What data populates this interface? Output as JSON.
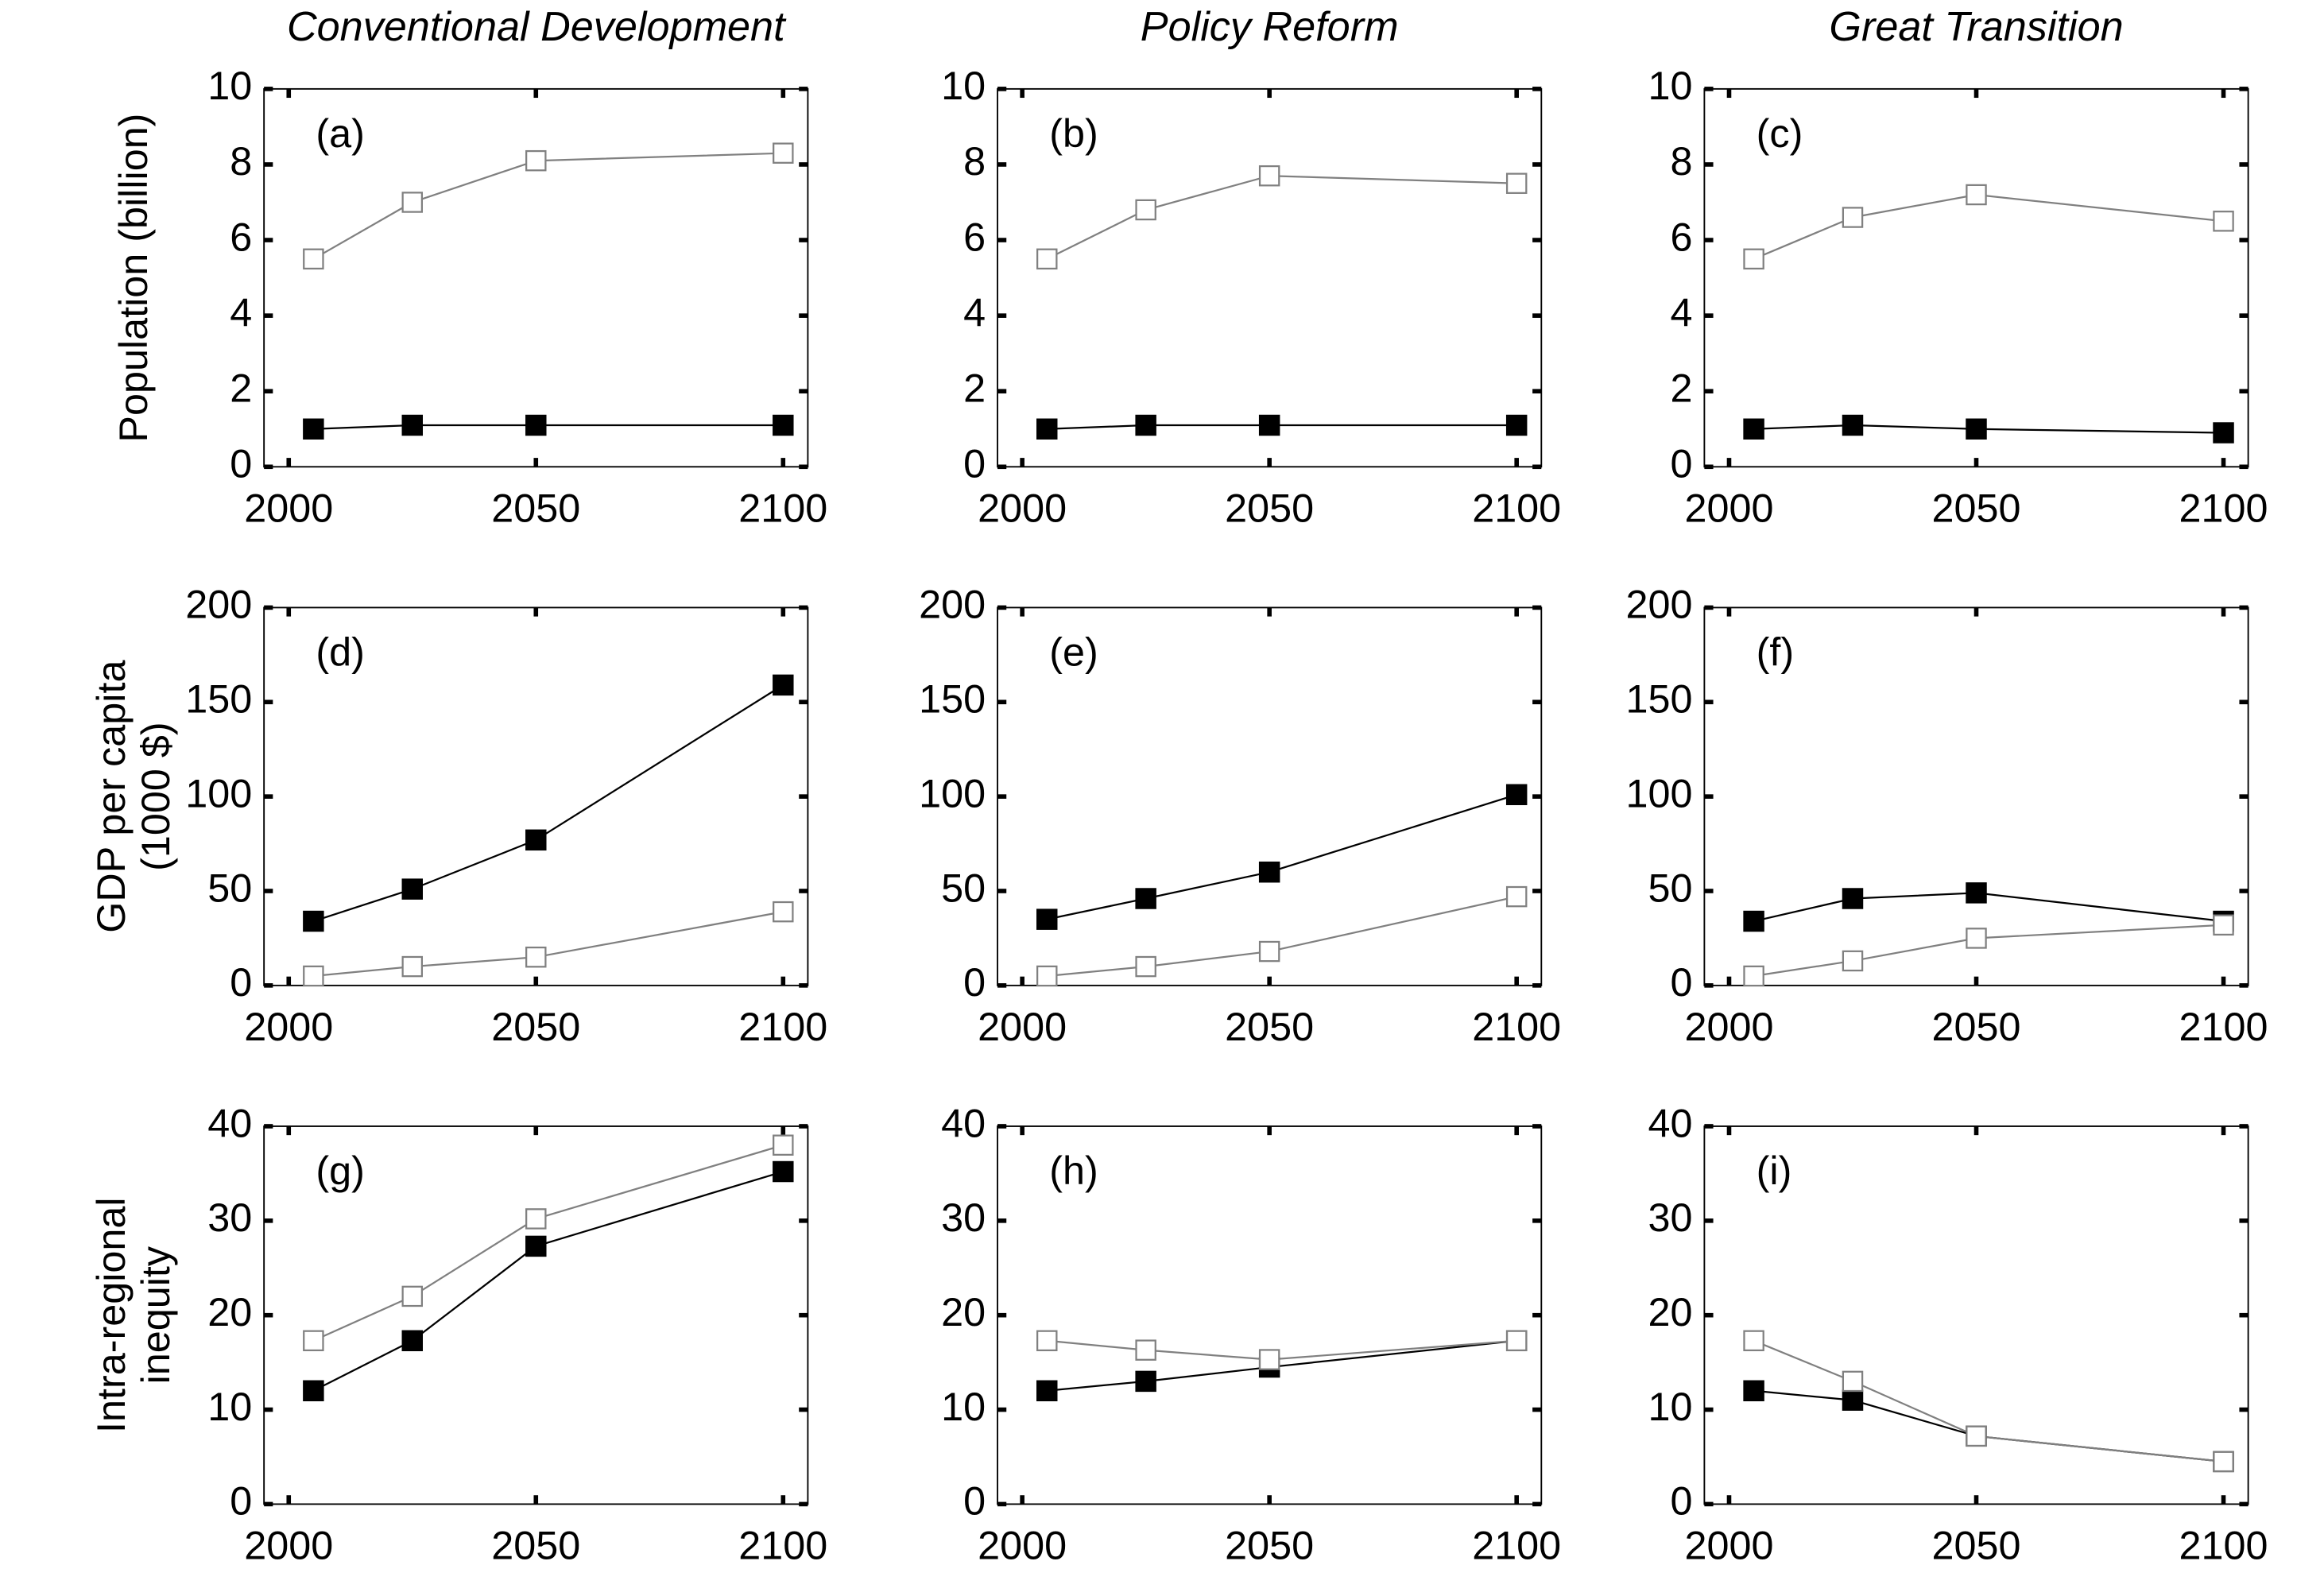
{
  "chart_data": [
    {
      "type": "line",
      "title": "Conventional Development",
      "ylabel": [
        "Population (billion)"
      ],
      "panel_label": "(a)",
      "x": [
        2005,
        2025,
        2050,
        2100
      ],
      "xlim": [
        1995,
        2105
      ],
      "xticks": [
        2000,
        2050,
        2100
      ],
      "ylim": [
        0,
        10
      ],
      "yticks": [
        0,
        2,
        4,
        6,
        8,
        10
      ],
      "series": [
        {
          "color": "#808080",
          "marker_fill": "#ffffff",
          "values": [
            5.5,
            7.0,
            8.1,
            8.3
          ]
        },
        {
          "color": "#000000",
          "marker_fill": "#000000",
          "values": [
            1.0,
            1.1,
            1.1,
            1.1
          ]
        }
      ]
    },
    {
      "type": "line",
      "title": "Policy Reform",
      "panel_label": "(b)",
      "x": [
        2005,
        2025,
        2050,
        2100
      ],
      "xlim": [
        1995,
        2105
      ],
      "xticks": [
        2000,
        2050,
        2100
      ],
      "ylim": [
        0,
        10
      ],
      "yticks": [
        0,
        2,
        4,
        6,
        8,
        10
      ],
      "series": [
        {
          "color": "#808080",
          "marker_fill": "#ffffff",
          "values": [
            5.5,
            6.8,
            7.7,
            7.5
          ]
        },
        {
          "color": "#000000",
          "marker_fill": "#000000",
          "values": [
            1.0,
            1.1,
            1.1,
            1.1
          ]
        }
      ]
    },
    {
      "type": "line",
      "title": "Great Transition",
      "panel_label": "(c)",
      "x": [
        2005,
        2025,
        2050,
        2100
      ],
      "xlim": [
        1995,
        2105
      ],
      "xticks": [
        2000,
        2050,
        2100
      ],
      "ylim": [
        0,
        10
      ],
      "yticks": [
        0,
        2,
        4,
        6,
        8,
        10
      ],
      "series": [
        {
          "color": "#808080",
          "marker_fill": "#ffffff",
          "values": [
            5.5,
            6.6,
            7.2,
            6.5
          ]
        },
        {
          "color": "#000000",
          "marker_fill": "#000000",
          "values": [
            1.0,
            1.1,
            1.0,
            0.9
          ]
        }
      ]
    },
    {
      "type": "line",
      "ylabel": [
        "GDP per capita",
        "(1000 $)"
      ],
      "panel_label": "(d)",
      "x": [
        2005,
        2025,
        2050,
        2100
      ],
      "xlim": [
        1995,
        2105
      ],
      "xticks": [
        2000,
        2050,
        2100
      ],
      "ylim": [
        0,
        200
      ],
      "yticks": [
        0,
        50,
        100,
        150,
        200
      ],
      "series": [
        {
          "color": "#000000",
          "marker_fill": "#000000",
          "values": [
            34,
            51,
            77,
            159
          ]
        },
        {
          "color": "#808080",
          "marker_fill": "#ffffff",
          "values": [
            5,
            10,
            15,
            39
          ]
        }
      ]
    },
    {
      "type": "line",
      "panel_label": "(e)",
      "x": [
        2005,
        2025,
        2050,
        2100
      ],
      "xlim": [
        1995,
        2105
      ],
      "xticks": [
        2000,
        2050,
        2100
      ],
      "ylim": [
        0,
        200
      ],
      "yticks": [
        0,
        50,
        100,
        150,
        200
      ],
      "series": [
        {
          "color": "#000000",
          "marker_fill": "#000000",
          "values": [
            35,
            46,
            60,
            101
          ]
        },
        {
          "color": "#808080",
          "marker_fill": "#ffffff",
          "values": [
            5,
            10,
            18,
            47
          ]
        }
      ]
    },
    {
      "type": "line",
      "panel_label": "(f)",
      "x": [
        2005,
        2025,
        2050,
        2100
      ],
      "xlim": [
        1995,
        2105
      ],
      "xticks": [
        2000,
        2050,
        2100
      ],
      "ylim": [
        0,
        200
      ],
      "yticks": [
        0,
        50,
        100,
        150,
        200
      ],
      "series": [
        {
          "color": "#000000",
          "marker_fill": "#000000",
          "values": [
            34,
            46,
            49,
            34
          ]
        },
        {
          "color": "#808080",
          "marker_fill": "#ffffff",
          "values": [
            5,
            13,
            25,
            32
          ]
        }
      ]
    },
    {
      "type": "line",
      "ylabel": [
        "Intra-regional",
        "inequity"
      ],
      "panel_label": "(g)",
      "x": [
        2005,
        2025,
        2050,
        2100
      ],
      "xlim": [
        1995,
        2105
      ],
      "xticks": [
        2000,
        2050,
        2100
      ],
      "ylim": [
        0,
        40
      ],
      "yticks": [
        0,
        10,
        20,
        30,
        40
      ],
      "series": [
        {
          "color": "#808080",
          "marker_fill": "#ffffff",
          "values": [
            17.3,
            22,
            30.2,
            38
          ]
        },
        {
          "color": "#000000",
          "marker_fill": "#000000",
          "values": [
            12,
            17.3,
            27.3,
            35.2
          ]
        }
      ]
    },
    {
      "type": "line",
      "panel_label": "(h)",
      "x": [
        2005,
        2025,
        2050,
        2100
      ],
      "xlim": [
        1995,
        2105
      ],
      "xticks": [
        2000,
        2050,
        2100
      ],
      "ylim": [
        0,
        40
      ],
      "yticks": [
        0,
        10,
        20,
        30,
        40
      ],
      "series": [
        {
          "color": "#000000",
          "marker_fill": "#000000",
          "values": [
            12,
            13,
            14.5,
            17.3
          ]
        },
        {
          "color": "#808080",
          "marker_fill": "#ffffff",
          "values": [
            17.3,
            16.3,
            15.3,
            17.3
          ]
        }
      ]
    },
    {
      "type": "line",
      "panel_label": "(i)",
      "x": [
        2005,
        2025,
        2050,
        2100
      ],
      "xlim": [
        1995,
        2105
      ],
      "xticks": [
        2000,
        2050,
        2100
      ],
      "ylim": [
        0,
        40
      ],
      "yticks": [
        0,
        10,
        20,
        30,
        40
      ],
      "series": [
        {
          "color": "#000000",
          "marker_fill": "#000000",
          "values": [
            12,
            11,
            7.2,
            4.5
          ]
        },
        {
          "color": "#808080",
          "marker_fill": "#ffffff",
          "values": [
            17.3,
            13,
            7.2,
            4.5
          ]
        }
      ]
    }
  ]
}
